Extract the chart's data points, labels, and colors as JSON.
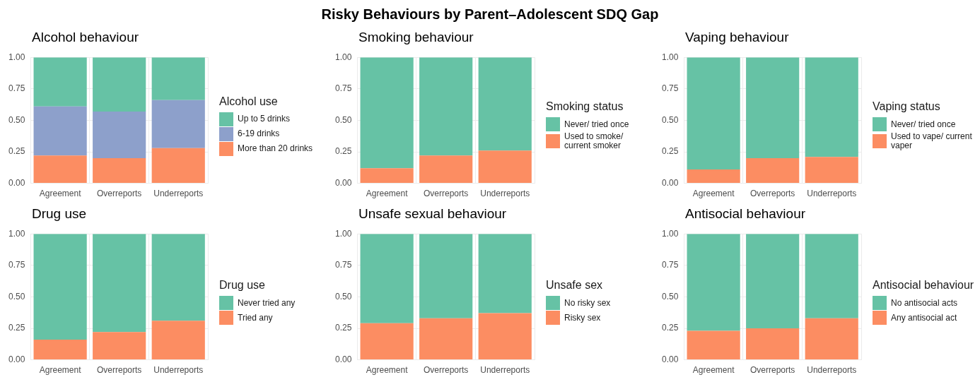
{
  "chart_data": [
    {
      "type": "bar",
      "title": "Alcohol behaviour",
      "legend_title": "Alcohol use",
      "annotations": [
        "Risky Behaviours by Parent–Adolescent SDQ Gap"
      ],
      "categories": [
        "Agreement",
        "Overreports",
        "Underreports"
      ],
      "stacked": true,
      "legend": "right",
      "grid": true,
      "ylim": [
        0,
        1
      ],
      "yticks": [
        {
          "value": 0,
          "label": "0.00"
        },
        {
          "value": 0.25,
          "label": "0.25"
        },
        {
          "value": 0.5,
          "label": "0.50"
        },
        {
          "value": 0.75,
          "label": "0.75"
        },
        {
          "value": 1,
          "label": "1.00"
        }
      ],
      "series": [
        {
          "name": "More than 20 drinks",
          "color": "#fc8d62",
          "values": [
            0.22,
            0.2,
            0.28
          ]
        },
        {
          "name": "6-19 drinks",
          "color": "#8da0cb",
          "values": [
            0.39,
            0.37,
            0.38
          ]
        },
        {
          "name": "Up to 5 drinks",
          "color": "#66c2a5",
          "values": [
            0.39,
            0.43,
            0.34
          ]
        }
      ]
    },
    {
      "type": "bar",
      "title": "Smoking behaviour",
      "legend_title": "Smoking status",
      "categories": [
        "Agreement",
        "Overreports",
        "Underreports"
      ],
      "stacked": true,
      "legend": "right",
      "grid": true,
      "ylim": [
        0,
        1
      ],
      "yticks": [
        {
          "value": 0,
          "label": "0.00"
        },
        {
          "value": 0.25,
          "label": "0.25"
        },
        {
          "value": 0.5,
          "label": "0.50"
        },
        {
          "value": 0.75,
          "label": "0.75"
        },
        {
          "value": 1,
          "label": "1.00"
        }
      ],
      "series": [
        {
          "name": "Used to smoke/ current smoker",
          "color": "#fc8d62",
          "values": [
            0.12,
            0.22,
            0.26
          ]
        },
        {
          "name": "Never/ tried once",
          "color": "#66c2a5",
          "values": [
            0.88,
            0.78,
            0.74
          ]
        }
      ]
    },
    {
      "type": "bar",
      "title": "Vaping behaviour",
      "legend_title": "Vaping status",
      "categories": [
        "Agreement",
        "Overreports",
        "Underreports"
      ],
      "stacked": true,
      "legend": "right",
      "grid": true,
      "ylim": [
        0,
        1
      ],
      "yticks": [
        {
          "value": 0,
          "label": "0.00"
        },
        {
          "value": 0.25,
          "label": "0.25"
        },
        {
          "value": 0.5,
          "label": "0.50"
        },
        {
          "value": 0.75,
          "label": "0.75"
        },
        {
          "value": 1,
          "label": "1.00"
        }
      ],
      "series": [
        {
          "name": "Used to vape/ current vaper",
          "color": "#fc8d62",
          "values": [
            0.11,
            0.2,
            0.21
          ]
        },
        {
          "name": "Never/ tried once",
          "color": "#66c2a5",
          "values": [
            0.89,
            0.8,
            0.79
          ]
        }
      ]
    },
    {
      "type": "bar",
      "title": "Drug use",
      "legend_title": "Drug use",
      "categories": [
        "Agreement",
        "Overreports",
        "Underreports"
      ],
      "stacked": true,
      "legend": "right",
      "grid": true,
      "ylim": [
        0,
        1
      ],
      "yticks": [
        {
          "value": 0,
          "label": "0.00"
        },
        {
          "value": 0.25,
          "label": "0.25"
        },
        {
          "value": 0.5,
          "label": "0.50"
        },
        {
          "value": 0.75,
          "label": "0.75"
        },
        {
          "value": 1,
          "label": "1.00"
        }
      ],
      "series": [
        {
          "name": "Tried any",
          "color": "#fc8d62",
          "values": [
            0.16,
            0.22,
            0.31
          ]
        },
        {
          "name": "Never tried any",
          "color": "#66c2a5",
          "values": [
            0.84,
            0.78,
            0.69
          ]
        }
      ]
    },
    {
      "type": "bar",
      "title": "Unsafe sexual behaviour",
      "legend_title": "Unsafe sex",
      "categories": [
        "Agreement",
        "Overreports",
        "Underreports"
      ],
      "stacked": true,
      "legend": "right",
      "grid": true,
      "ylim": [
        0,
        1
      ],
      "yticks": [
        {
          "value": 0,
          "label": "0.00"
        },
        {
          "value": 0.25,
          "label": "0.25"
        },
        {
          "value": 0.5,
          "label": "0.50"
        },
        {
          "value": 0.75,
          "label": "0.75"
        },
        {
          "value": 1,
          "label": "1.00"
        }
      ],
      "series": [
        {
          "name": "Risky sex",
          "color": "#fc8d62",
          "values": [
            0.29,
            0.33,
            0.37
          ]
        },
        {
          "name": "No risky sex",
          "color": "#66c2a5",
          "values": [
            0.71,
            0.67,
            0.63
          ]
        }
      ]
    },
    {
      "type": "bar",
      "title": "Antisocial behaviour",
      "legend_title": "Antisocial behaviour",
      "categories": [
        "Agreement",
        "Overreports",
        "Underreports"
      ],
      "stacked": true,
      "legend": "right",
      "grid": true,
      "ylim": [
        0,
        1
      ],
      "yticks": [
        {
          "value": 0,
          "label": "0.00"
        },
        {
          "value": 0.25,
          "label": "0.25"
        },
        {
          "value": 0.5,
          "label": "0.50"
        },
        {
          "value": 0.75,
          "label": "0.75"
        },
        {
          "value": 1,
          "label": "1.00"
        }
      ],
      "series": [
        {
          "name": "Any antisocial act",
          "color": "#fc8d62",
          "values": [
            0.23,
            0.25,
            0.33
          ]
        },
        {
          "name": "No antisocial acts",
          "color": "#66c2a5",
          "values": [
            0.77,
            0.75,
            0.67
          ]
        }
      ]
    }
  ]
}
